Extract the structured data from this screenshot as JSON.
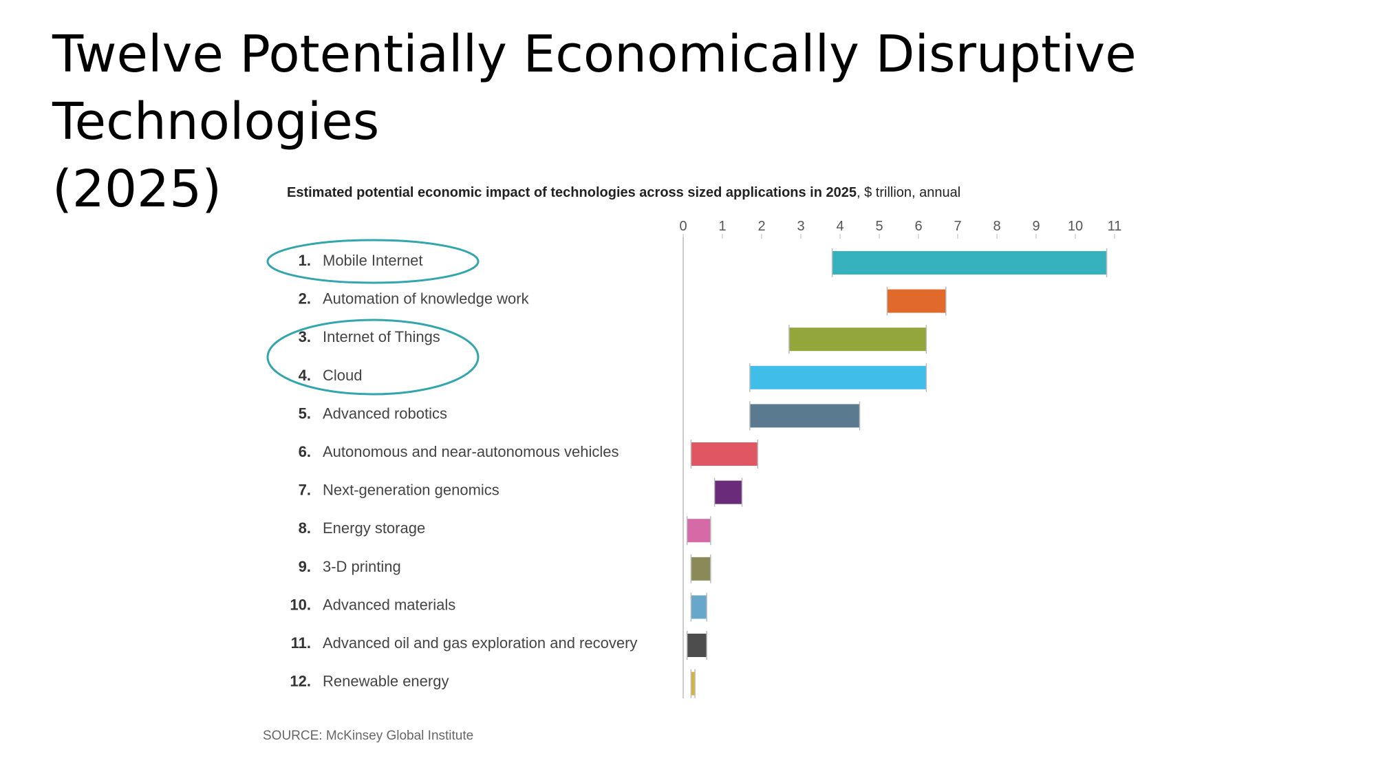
{
  "slide": {
    "title_line1": "Twelve Potentially Economically Disruptive Technologies",
    "title_line2": "(2025)"
  },
  "chart_data": {
    "type": "bar",
    "subtitle_bold": "Estimated potential economic impact of technologies across sized applications in 2025",
    "subtitle_rest": ", $ trillion, annual",
    "source": "SOURCE: McKinsey Global Institute",
    "xlim": [
      0,
      11
    ],
    "ticks": [
      0,
      1,
      2,
      3,
      4,
      5,
      6,
      7,
      8,
      9,
      10,
      11
    ],
    "grid": false,
    "orientation": "horizontal-range",
    "categories": [
      {
        "num": "1.",
        "label": "Mobile Internet",
        "low": 3.8,
        "high": 10.8,
        "color": "#35b2bd",
        "circled": true
      },
      {
        "num": "2.",
        "label": "Automation of knowledge work",
        "low": 5.2,
        "high": 6.7,
        "color": "#e0692b",
        "circled": false
      },
      {
        "num": "3.",
        "label": "Internet of Things",
        "low": 2.7,
        "high": 6.2,
        "color": "#93a63b",
        "circled": true
      },
      {
        "num": "4.",
        "label": "Cloud",
        "low": 1.7,
        "high": 6.2,
        "color": "#40bde8",
        "circled": true
      },
      {
        "num": "5.",
        "label": "Advanced robotics",
        "low": 1.7,
        "high": 4.5,
        "color": "#5a7a8f",
        "circled": false
      },
      {
        "num": "6.",
        "label": "Autonomous and near-autonomous vehicles",
        "low": 0.2,
        "high": 1.9,
        "color": "#e05662",
        "circled": false
      },
      {
        "num": "7.",
        "label": "Next-generation genomics",
        "low": 0.8,
        "high": 1.5,
        "color": "#6a2c7a",
        "circled": false
      },
      {
        "num": "8.",
        "label": "Energy storage",
        "low": 0.1,
        "high": 0.7,
        "color": "#d56aa6",
        "circled": false
      },
      {
        "num": "9.",
        "label": "3-D printing",
        "low": 0.2,
        "high": 0.7,
        "color": "#898a58",
        "circled": false
      },
      {
        "num": "10.",
        "label": "Advanced materials",
        "low": 0.2,
        "high": 0.6,
        "color": "#67a7cc",
        "circled": false
      },
      {
        "num": "11.",
        "label": "Advanced oil and gas exploration and recovery",
        "low": 0.1,
        "high": 0.6,
        "color": "#4d4d4d",
        "circled": false
      },
      {
        "num": "12.",
        "label": "Renewable energy",
        "low": 0.2,
        "high": 0.3,
        "color": "#d4b43a",
        "circled": false
      }
    ]
  }
}
